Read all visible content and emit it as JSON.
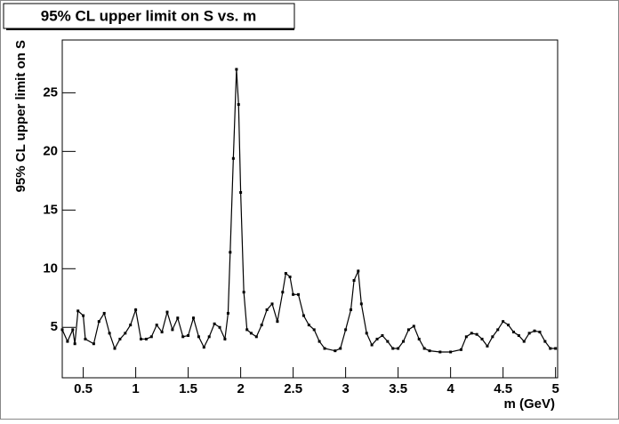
{
  "chart_data": {
    "type": "line",
    "title": "95% CL upper limit on S vs. m",
    "x_label": "m (GeV)",
    "y_label": "95% CL upper limit on S",
    "x": [
      0.3,
      0.35,
      0.4,
      0.42,
      0.45,
      0.5,
      0.52,
      0.6,
      0.65,
      0.7,
      0.75,
      0.8,
      0.85,
      0.9,
      0.95,
      1.0,
      1.05,
      1.1,
      1.15,
      1.2,
      1.25,
      1.3,
      1.35,
      1.4,
      1.45,
      1.5,
      1.55,
      1.6,
      1.65,
      1.7,
      1.75,
      1.8,
      1.85,
      1.88,
      1.9,
      1.93,
      1.96,
      1.98,
      2.0,
      2.03,
      2.06,
      2.1,
      2.15,
      2.2,
      2.25,
      2.3,
      2.35,
      2.4,
      2.43,
      2.47,
      2.5,
      2.55,
      2.6,
      2.65,
      2.7,
      2.75,
      2.8,
      2.9,
      2.95,
      3.0,
      3.05,
      3.08,
      3.12,
      3.15,
      3.2,
      3.25,
      3.3,
      3.35,
      3.4,
      3.45,
      3.5,
      3.55,
      3.6,
      3.65,
      3.7,
      3.75,
      3.8,
      3.9,
      4.0,
      4.1,
      4.15,
      4.2,
      4.25,
      4.3,
      4.35,
      4.4,
      4.45,
      4.5,
      4.55,
      4.6,
      4.65,
      4.7,
      4.75,
      4.8,
      4.85,
      4.9,
      4.95,
      5.0
    ],
    "series": [
      {
        "color": "#000000",
        "values": [
          4.8,
          3.8,
          4.8,
          3.6,
          6.4,
          6.0,
          4.0,
          3.6,
          5.5,
          6.2,
          4.5,
          3.2,
          4.0,
          4.5,
          5.2,
          6.5,
          4.0,
          4.0,
          4.2,
          5.2,
          4.6,
          6.3,
          4.8,
          5.8,
          4.2,
          4.3,
          5.8,
          4.2,
          3.3,
          4.2,
          5.3,
          5.0,
          4.0,
          6.2,
          11.4,
          19.4,
          27.0,
          24.0,
          16.5,
          8.0,
          4.8,
          4.5,
          4.2,
          5.2,
          6.5,
          7.0,
          5.5,
          8.0,
          9.6,
          9.3,
          7.8,
          7.8,
          6.0,
          5.2,
          4.8,
          3.8,
          3.2,
          3.0,
          3.2,
          4.8,
          6.5,
          9.0,
          9.8,
          7.0,
          4.5,
          3.5,
          4.0,
          4.3,
          3.8,
          3.2,
          3.2,
          3.8,
          4.8,
          5.1,
          4.0,
          3.2,
          3.0,
          2.9,
          2.9,
          3.1,
          4.2,
          4.5,
          4.4,
          4.0,
          3.4,
          4.2,
          4.8,
          5.5,
          5.2,
          4.6,
          4.3,
          3.8,
          4.5,
          4.7,
          4.6,
          3.8,
          3.2,
          3.2
        ]
      }
    ],
    "xlim": [
      0.3,
      5.02
    ],
    "ylim": [
      0.7,
      29.5
    ],
    "xticks": [
      0.5,
      1,
      1.5,
      2,
      2.5,
      3,
      3.5,
      4,
      4.5,
      5
    ],
    "yticks": [
      5,
      10,
      15,
      20,
      25
    ],
    "grid": false
  }
}
